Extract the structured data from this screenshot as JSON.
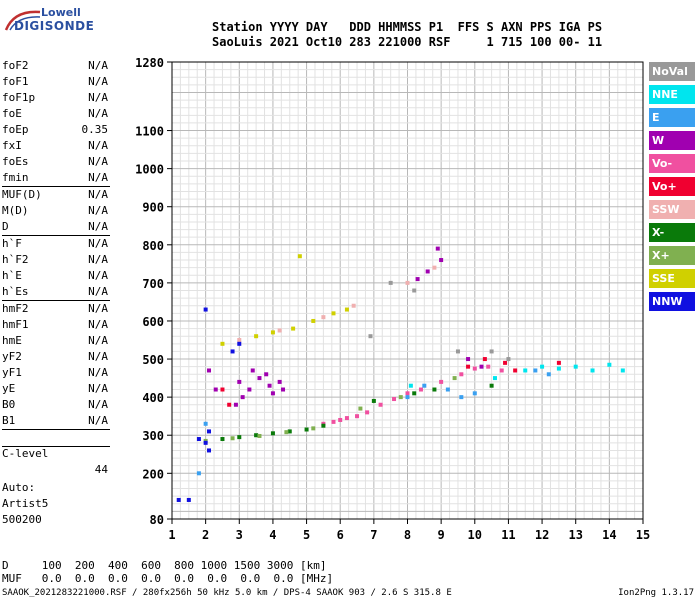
{
  "logo": {
    "line1": "Lowell",
    "line2": "DIGISONDE"
  },
  "header": {
    "line1": "Station YYYY DAY   DDD HHMMSS P1  FFS S AXN PPS IGA PS",
    "line2": "SaoLuis 2021 Oct10 283 221000 RSF     1 715 100 00- 11"
  },
  "params": [
    {
      "k": "foF2",
      "v": "N/A"
    },
    {
      "k": "foF1",
      "v": "N/A"
    },
    {
      "k": "foF1p",
      "v": "N/A"
    },
    {
      "k": "foE",
      "v": "N/A"
    },
    {
      "k": "foEp",
      "v": "0.35"
    },
    {
      "k": "fxI",
      "v": "N/A"
    },
    {
      "k": "foEs",
      "v": "N/A"
    },
    {
      "k": "fmin",
      "v": "N/A"
    }
  ],
  "params2": [
    {
      "k": "MUF(D)",
      "v": "N/A"
    },
    {
      "k": "M(D)",
      "v": "N/A"
    },
    {
      "k": "D",
      "v": "N/A"
    }
  ],
  "params3": [
    {
      "k": "h`F",
      "v": "N/A"
    },
    {
      "k": "h`F2",
      "v": "N/A"
    },
    {
      "k": "h`E",
      "v": "N/A"
    },
    {
      "k": "h`Es",
      "v": "N/A"
    }
  ],
  "params4": [
    {
      "k": "hmF2",
      "v": "N/A"
    },
    {
      "k": "hmF1",
      "v": "N/A"
    },
    {
      "k": "hmE",
      "v": "N/A"
    },
    {
      "k": "yF2",
      "v": "N/A"
    },
    {
      "k": "yF1",
      "v": "N/A"
    },
    {
      "k": "yE",
      "v": "N/A"
    },
    {
      "k": "B0",
      "v": "N/A"
    },
    {
      "k": "B1",
      "v": "N/A"
    }
  ],
  "clevel": {
    "k": "C-level",
    "v": "44"
  },
  "auto": {
    "l1": "Auto:",
    "l2": "Artist5",
    "l3": "500200"
  },
  "legend": [
    {
      "label": "NoVal",
      "color": "#999999"
    },
    {
      "label": "NNE",
      "color": "#00e5ee"
    },
    {
      "label": "E",
      "color": "#3aa0f0"
    },
    {
      "label": "W",
      "color": "#a000b0"
    },
    {
      "label": "Vo-",
      "color": "#f050a0"
    },
    {
      "label": "Vo+",
      "color": "#f00030"
    },
    {
      "label": "SSW",
      "color": "#f0b0b0"
    },
    {
      "label": "X-",
      "color": "#0a7a0a"
    },
    {
      "label": "X+",
      "color": "#80b050"
    },
    {
      "label": "SSE",
      "color": "#d0d000"
    },
    {
      "label": "NNW",
      "color": "#1010e0"
    }
  ],
  "bottom": {
    "line1": "D     100  200  400  600  800 1000 1500 3000 [km]",
    "line2": "MUF   0.0  0.0  0.0  0.0  0.0  0.0  0.0  0.0 [MHz]"
  },
  "footer": "SAAOK_2021283221000.RSF / 280fx256h 50 kHz 5.0 km / DPS-4 SAAOK 903 / 2.6 S 315.8 E",
  "version": "Ion2Png 1.3.17",
  "chart_data": {
    "type": "scatter",
    "title": "",
    "xlabel": "",
    "ylabel": "",
    "xlim": [
      1,
      15
    ],
    "ylim": [
      80,
      1280
    ],
    "x_ticks": [
      1,
      2,
      3,
      4,
      5,
      6,
      7,
      8,
      9,
      10,
      11,
      12,
      13,
      14,
      15
    ],
    "y_ticks": [
      80,
      200,
      300,
      400,
      500,
      600,
      700,
      800,
      900,
      1000,
      1100,
      1280
    ],
    "grid": true,
    "series": [
      {
        "name": "W",
        "color": "#a000b0",
        "points": [
          [
            3.0,
            440
          ],
          [
            3.3,
            420
          ],
          [
            3.6,
            450
          ],
          [
            3.9,
            430
          ],
          [
            4.2,
            440
          ],
          [
            2.9,
            380
          ],
          [
            3.4,
            470
          ],
          [
            4.0,
            410
          ],
          [
            3.1,
            400
          ],
          [
            3.8,
            460
          ],
          [
            4.3,
            420
          ],
          [
            2.1,
            470
          ],
          [
            2.3,
            420
          ],
          [
            8.3,
            710
          ],
          [
            8.6,
            730
          ],
          [
            9.0,
            760
          ],
          [
            8.9,
            790
          ],
          [
            9.8,
            500
          ],
          [
            10.2,
            480
          ]
        ]
      },
      {
        "name": "Vo-",
        "color": "#f050a0",
        "points": [
          [
            6.0,
            340
          ],
          [
            6.2,
            345
          ],
          [
            6.5,
            350
          ],
          [
            6.8,
            360
          ],
          [
            7.2,
            380
          ],
          [
            7.6,
            395
          ],
          [
            8.0,
            410
          ],
          [
            8.4,
            420
          ],
          [
            9.0,
            440
          ],
          [
            9.6,
            460
          ],
          [
            10.0,
            475
          ],
          [
            10.4,
            480
          ],
          [
            10.8,
            470
          ],
          [
            5.5,
            330
          ],
          [
            5.8,
            335
          ]
        ]
      },
      {
        "name": "Vo+",
        "color": "#f00030",
        "points": [
          [
            9.8,
            480
          ],
          [
            10.3,
            500
          ],
          [
            10.9,
            490
          ],
          [
            11.2,
            470
          ],
          [
            12.5,
            490
          ],
          [
            2.5,
            420
          ],
          [
            2.7,
            380
          ]
        ]
      },
      {
        "name": "X-",
        "color": "#0a7a0a",
        "points": [
          [
            2.5,
            290
          ],
          [
            3.0,
            295
          ],
          [
            3.5,
            300
          ],
          [
            4.0,
            305
          ],
          [
            4.5,
            310
          ],
          [
            5.0,
            315
          ],
          [
            5.5,
            325
          ],
          [
            7.0,
            390
          ],
          [
            8.2,
            410
          ],
          [
            8.8,
            420
          ],
          [
            10.5,
            430
          ]
        ]
      },
      {
        "name": "X+",
        "color": "#80b050",
        "points": [
          [
            2.0,
            285
          ],
          [
            2.8,
            292
          ],
          [
            3.6,
            298
          ],
          [
            4.4,
            308
          ],
          [
            5.2,
            318
          ],
          [
            6.6,
            370
          ],
          [
            7.8,
            400
          ],
          [
            9.4,
            450
          ]
        ]
      },
      {
        "name": "NNE",
        "color": "#00e5ee",
        "points": [
          [
            11.5,
            470
          ],
          [
            12.0,
            480
          ],
          [
            12.5,
            475
          ],
          [
            13.0,
            480
          ],
          [
            13.5,
            470
          ],
          [
            14.0,
            485
          ],
          [
            14.4,
            470
          ],
          [
            8.1,
            430
          ],
          [
            10.6,
            450
          ]
        ]
      },
      {
        "name": "E",
        "color": "#3aa0f0",
        "points": [
          [
            8.0,
            400
          ],
          [
            8.5,
            430
          ],
          [
            9.2,
            420
          ],
          [
            9.6,
            400
          ],
          [
            10.0,
            410
          ],
          [
            11.8,
            470
          ],
          [
            12.2,
            460
          ],
          [
            1.8,
            200
          ],
          [
            2.0,
            330
          ]
        ]
      },
      {
        "name": "SSE",
        "color": "#d0d000",
        "points": [
          [
            3.5,
            560
          ],
          [
            4.0,
            570
          ],
          [
            4.6,
            580
          ],
          [
            5.2,
            600
          ],
          [
            5.8,
            620
          ],
          [
            6.2,
            630
          ],
          [
            4.8,
            770
          ],
          [
            2.5,
            540
          ]
        ]
      },
      {
        "name": "SSW",
        "color": "#f0b0b0",
        "points": [
          [
            3.0,
            550
          ],
          [
            4.2,
            575
          ],
          [
            5.5,
            610
          ],
          [
            6.4,
            640
          ],
          [
            8.0,
            700
          ],
          [
            8.8,
            740
          ]
        ]
      },
      {
        "name": "NNW",
        "color": "#1010e0",
        "points": [
          [
            2.0,
            280
          ],
          [
            1.8,
            290
          ],
          [
            2.1,
            310
          ],
          [
            2.8,
            520
          ],
          [
            3.0,
            540
          ],
          [
            1.2,
            130
          ],
          [
            1.5,
            130
          ],
          [
            2.1,
            260
          ],
          [
            2.0,
            630
          ]
        ]
      },
      {
        "name": "NoVal",
        "color": "#999999",
        "points": [
          [
            7.5,
            700
          ],
          [
            8.2,
            680
          ],
          [
            9.5,
            520
          ],
          [
            10.5,
            520
          ],
          [
            11.0,
            500
          ],
          [
            6.9,
            560
          ]
        ]
      }
    ]
  }
}
